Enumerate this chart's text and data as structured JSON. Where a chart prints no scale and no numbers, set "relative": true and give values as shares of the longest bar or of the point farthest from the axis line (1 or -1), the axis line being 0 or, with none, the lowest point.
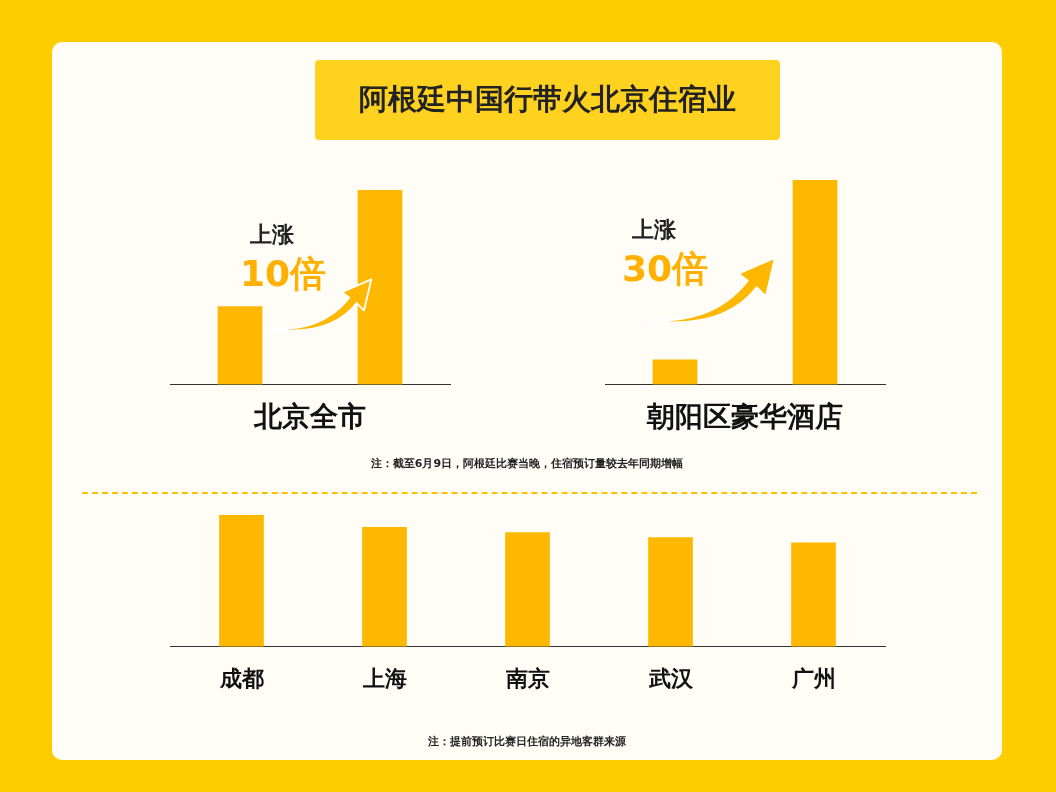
{
  "chart_data": [
    {
      "type": "bar",
      "title": "阿根廷中国行带火北京住宿业",
      "categories": [
        null,
        null
      ],
      "values": [
        0.4,
        1
      ],
      "color": "#ffb800",
      "relative": true,
      "xlabel": "北京全市",
      "annotations": [
        "上涨",
        "10倍"
      ]
    },
    {
      "type": "bar",
      "categories": [
        null,
        null
      ],
      "values": [
        0.12,
        1
      ],
      "color": "#ffb800",
      "relative": true,
      "xlabel": "朝阳区豪华酒店",
      "annotations": [
        "上涨",
        "30倍",
        "注：截至6月9日，阿根廷比赛当晚，住宿预订量较去年同期增幅"
      ]
    },
    {
      "type": "bar",
      "categories": [
        "成都",
        "上海",
        "南京",
        "武汉",
        "广州"
      ],
      "values": [
        1,
        0.906,
        0.867,
        0.828,
        0.789
      ],
      "color": "#ffb800",
      "relative": true,
      "annotations": [
        "注：提前预订比赛日住宿的异地客群来源"
      ]
    }
  ]
}
